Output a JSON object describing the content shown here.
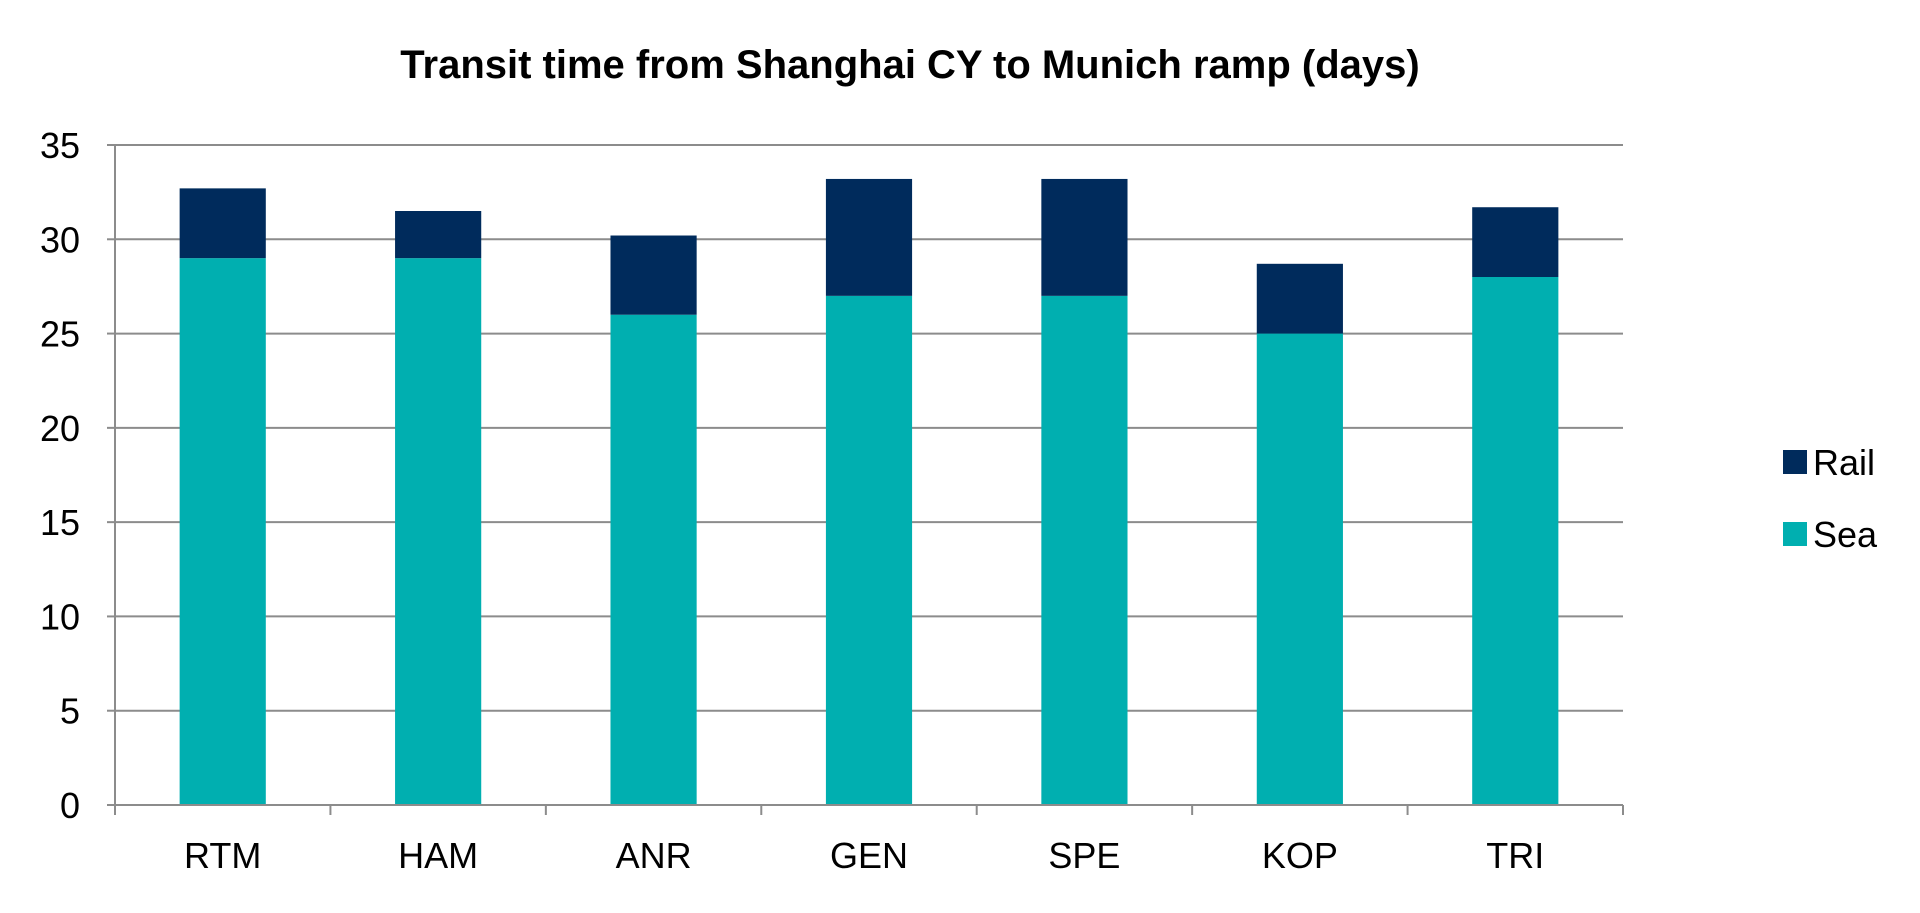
{
  "chart_data": {
    "type": "bar",
    "stacked": true,
    "title": "Transit time from Shanghai CY to Munich ramp (days)",
    "xlabel": "",
    "ylabel": "",
    "categories": [
      "RTM",
      "HAM",
      "ANR",
      "GEN",
      "SPE",
      "KOP",
      "TRI"
    ],
    "series": [
      {
        "name": "Sea",
        "color": "#00AFB0",
        "values": [
          29,
          29,
          26,
          27,
          27,
          25,
          28
        ]
      },
      {
        "name": "Rail",
        "color": "#002B5C",
        "values": [
          3.7,
          2.5,
          4.2,
          6.2,
          6.2,
          3.7,
          3.7
        ]
      }
    ],
    "ylim": [
      0,
      35
    ],
    "yticks": [
      0,
      5,
      10,
      15,
      20,
      25,
      30,
      35
    ],
    "grid": true,
    "legend": {
      "position": "right",
      "order": [
        "Rail",
        "Sea"
      ]
    }
  }
}
